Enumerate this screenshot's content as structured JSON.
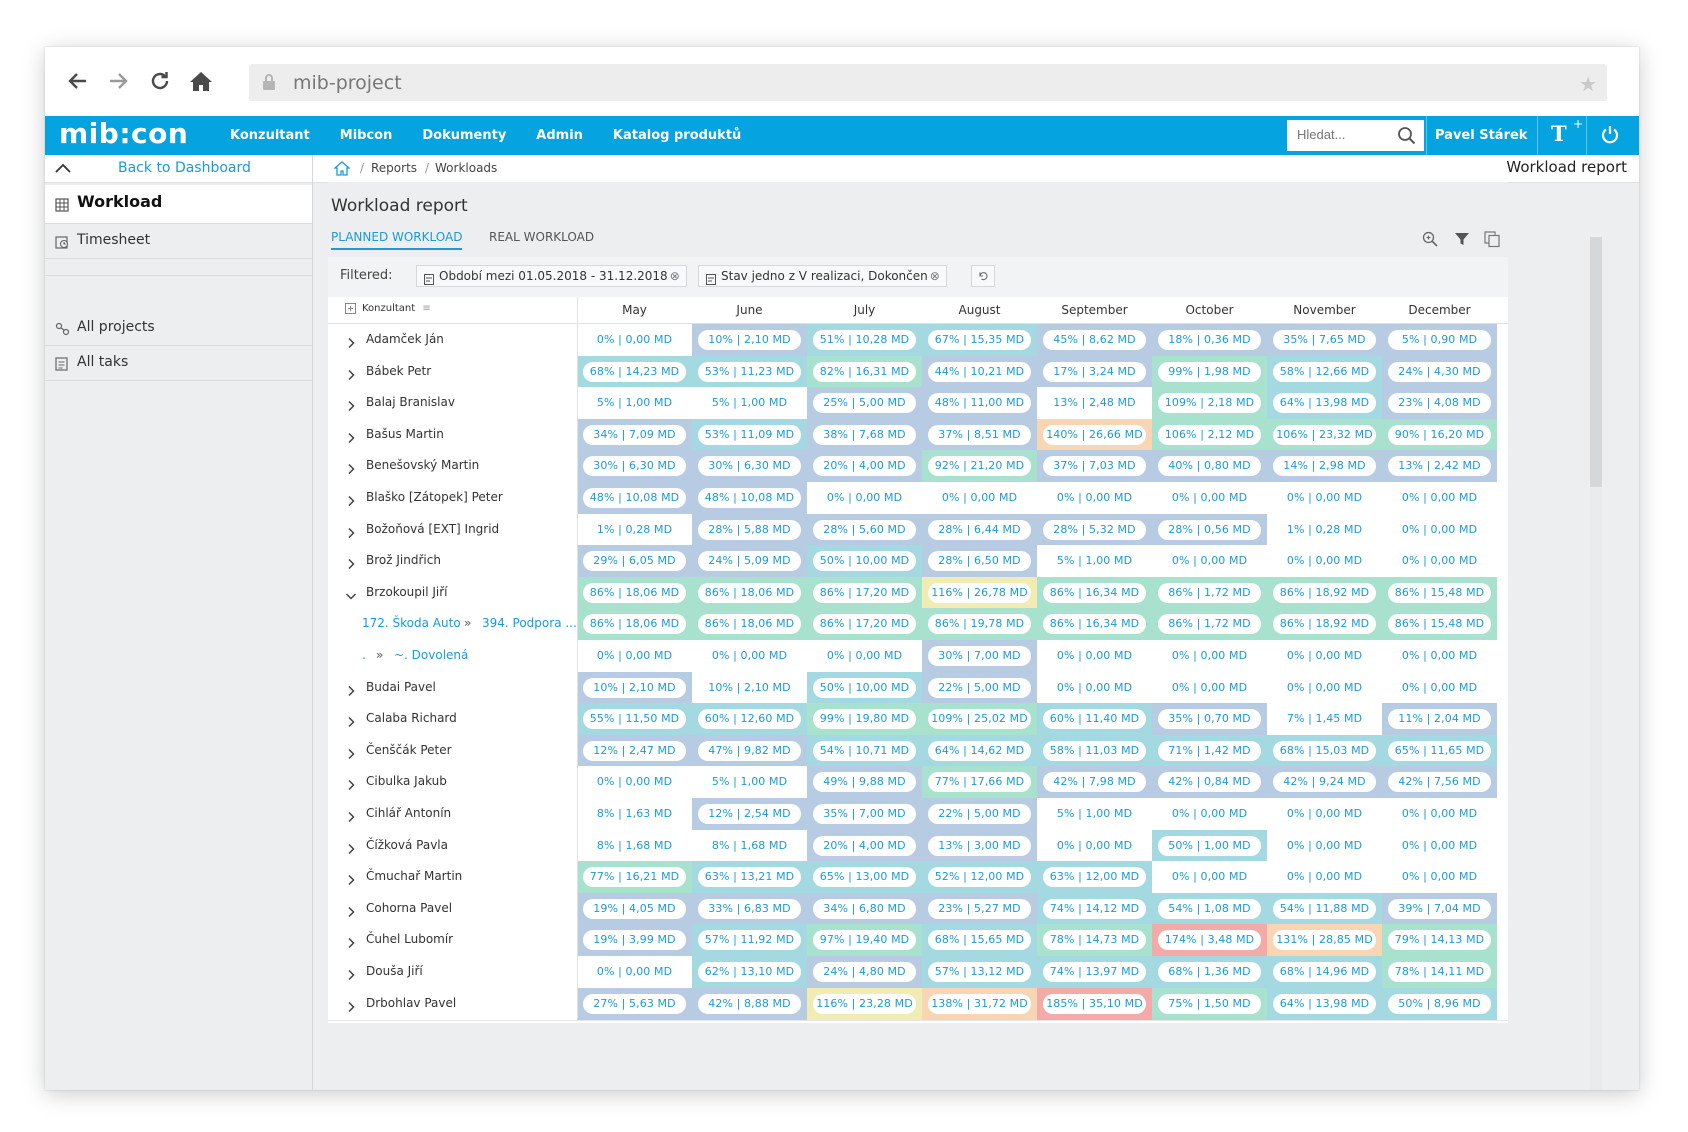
{
  "browser": {
    "url": "mib-project"
  },
  "header": {
    "logo": "mib:con",
    "menu": [
      "Konzultant",
      "Mibcon",
      "Dokumenty",
      "Admin",
      "Katalog produktů"
    ],
    "search_placeholder": "Hledat...",
    "user": "Pavel Stárek",
    "accent": "#05a3e0"
  },
  "sidebar": {
    "back_label": "Back to Dashboard",
    "items": [
      {
        "label": "Workload",
        "icon": "grid-icon"
      },
      {
        "label": "Timesheet",
        "icon": "timesheet-icon"
      },
      {
        "label": "All projects",
        "icon": "projects-icon"
      },
      {
        "label": "All taks",
        "icon": "tasks-icon"
      }
    ]
  },
  "breadcrumb": {
    "items": [
      "Reports",
      "Workloads"
    ],
    "page_title": "Workload report"
  },
  "report": {
    "title": "Workload report",
    "tabs": [
      "PLANNED WORKLOAD",
      "REAL WORKLOAD"
    ],
    "filter_label": "Filtered:",
    "filters": [
      "Období mezi 01.05.2018 - 31.12.2018",
      "Stav jedno z V realizaci, Dokončen"
    ],
    "filter_clear": "⊗"
  },
  "table": {
    "name_header": "Konzultant",
    "months": [
      "May",
      "June",
      "July",
      "August",
      "September",
      "October",
      "November",
      "December"
    ],
    "rows": [
      {
        "name": "Adamček Ján",
        "expanded": false,
        "cells": [
          "0% | 0,00 MD",
          "10% | 2,10 MD",
          "51% | 10,28 MD",
          "67% | 15,35 MD",
          "45% | 8,62 MD",
          "18% | 0,36 MD",
          "35% | 7,65 MD",
          "5% | 0,90 MD"
        ],
        "colors": [
          "#ffffff",
          "#b7cbe3",
          "#a4d9e2",
          "#a4d9e2",
          "#b7cbe3",
          "#b7cbe3",
          "#b7cbe3",
          "#b7cbe3"
        ]
      },
      {
        "name": "Bábek Petr",
        "expanded": false,
        "cells": [
          "68% | 14,23 MD",
          "53% | 11,23 MD",
          "82% | 16,31 MD",
          "44% | 10,21 MD",
          "17% | 3,24 MD",
          "99% | 1,98 MD",
          "58% | 12,66 MD",
          "24% | 4,30 MD"
        ],
        "colors": [
          "#a4d9e2",
          "#a4d9e2",
          "#a8e2cf",
          "#b7cbe3",
          "#b7cbe3",
          "#a8e2cf",
          "#a4d9e2",
          "#b7cbe3"
        ]
      },
      {
        "name": "Balaj Branislav",
        "expanded": false,
        "cells": [
          "5% | 1,00 MD",
          "5% | 1,00 MD",
          "25% | 5,00 MD",
          "48% | 11,00 MD",
          "13% | 2,48 MD",
          "109% | 2,18 MD",
          "64% | 13,98 MD",
          "23% | 4,08 MD"
        ],
        "colors": [
          "#ffffff",
          "#ffffff",
          "#b7cbe3",
          "#b7cbe3",
          "#ffffff",
          "#a8e2cf",
          "#a4d9e2",
          "#b7cbe3"
        ]
      },
      {
        "name": "Bašus Martin",
        "expanded": false,
        "cells": [
          "34% | 7,09 MD",
          "53% | 11,09 MD",
          "38% | 7,68 MD",
          "37% | 8,51 MD",
          "140% | 26,66 MD",
          "106% | 2,12 MD",
          "106% | 23,32 MD",
          "90% | 16,20 MD"
        ],
        "colors": [
          "#b7cbe3",
          "#a4d9e2",
          "#b7cbe3",
          "#b7cbe3",
          "#f8d6b4",
          "#a8e2cf",
          "#a8e2cf",
          "#a8e2cf"
        ]
      },
      {
        "name": "Benešovský Martin",
        "expanded": false,
        "cells": [
          "30% | 6,30 MD",
          "30% | 6,30 MD",
          "20% | 4,00 MD",
          "92% | 21,20 MD",
          "37% | 7,03 MD",
          "40% | 0,80 MD",
          "14% | 2,98 MD",
          "13% | 2,42 MD"
        ],
        "colors": [
          "#b7cbe3",
          "#b7cbe3",
          "#b7cbe3",
          "#a8e2cf",
          "#b7cbe3",
          "#b7cbe3",
          "#b7cbe3",
          "#b7cbe3"
        ]
      },
      {
        "name": "Blaško [Zátopek] Peter",
        "expanded": false,
        "cells": [
          "48% | 10,08 MD",
          "48% | 10,08 MD",
          "0% | 0,00 MD",
          "0% | 0,00 MD",
          "0% | 0,00 MD",
          "0% | 0,00 MD",
          "0% | 0,00 MD",
          "0% | 0,00 MD"
        ],
        "colors": [
          "#b7cbe3",
          "#b7cbe3",
          "#ffffff",
          "#ffffff",
          "#ffffff",
          "#ffffff",
          "#ffffff",
          "#ffffff"
        ]
      },
      {
        "name": "Božoňová [EXT] Ingrid",
        "expanded": false,
        "cells": [
          "1% | 0,28 MD",
          "28% | 5,88 MD",
          "28% | 5,60 MD",
          "28% | 6,44 MD",
          "28% | 5,32 MD",
          "28% | 0,56 MD",
          "1% | 0,28 MD",
          "0% | 0,00 MD"
        ],
        "colors": [
          "#ffffff",
          "#b7cbe3",
          "#b7cbe3",
          "#b7cbe3",
          "#b7cbe3",
          "#b7cbe3",
          "#ffffff",
          "#ffffff"
        ]
      },
      {
        "name": "Brož Jindřich",
        "expanded": false,
        "cells": [
          "29% | 6,05 MD",
          "24% | 5,09 MD",
          "50% | 10,00 MD",
          "28% | 6,50 MD",
          "5% | 1,00 MD",
          "0% | 0,00 MD",
          "0% | 0,00 MD",
          "0% | 0,00 MD"
        ],
        "colors": [
          "#b7cbe3",
          "#b7cbe3",
          "#a4d9e2",
          "#b7cbe3",
          "#ffffff",
          "#ffffff",
          "#ffffff",
          "#ffffff"
        ]
      },
      {
        "name": "Brzokoupil Jiří",
        "expanded": true,
        "cells": [
          "86% | 18,06 MD",
          "86% | 18,06 MD",
          "86% | 17,20 MD",
          "116% | 26,78 MD",
          "86% | 16,34 MD",
          "86% | 1,72 MD",
          "86% | 18,92 MD",
          "86% | 15,48 MD"
        ],
        "colors": [
          "#a8e2cf",
          "#a8e2cf",
          "#a8e2cf",
          "#f0ecb4",
          "#a8e2cf",
          "#a8e2cf",
          "#a8e2cf",
          "#a8e2cf"
        ]
      },
      {
        "sub": true,
        "name_a": "172. Škoda Auto",
        "name_b": "394. Podpora ...",
        "cells": [
          "86% | 18,06 MD",
          "86% | 18,06 MD",
          "86% | 17,20 MD",
          "86% | 19,78 MD",
          "86% | 16,34 MD",
          "86% | 1,72 MD",
          "86% | 18,92 MD",
          "86% | 15,48 MD"
        ],
        "colors": [
          "#a8e2cf",
          "#a8e2cf",
          "#a8e2cf",
          "#a8e2cf",
          "#a8e2cf",
          "#a8e2cf",
          "#a8e2cf",
          "#a8e2cf"
        ]
      },
      {
        "sub": true,
        "name_a": ".",
        "name_b": "~. Dovolená",
        "cells": [
          "0% | 0,00 MD",
          "0% | 0,00 MD",
          "0% | 0,00 MD",
          "30% | 7,00 MD",
          "0% | 0,00 MD",
          "0% | 0,00 MD",
          "0% | 0,00 MD",
          "0% | 0,00 MD"
        ],
        "colors": [
          "#ffffff",
          "#ffffff",
          "#ffffff",
          "#b7cbe3",
          "#ffffff",
          "#ffffff",
          "#ffffff",
          "#ffffff"
        ]
      },
      {
        "name": "Budai Pavel",
        "expanded": false,
        "cells": [
          "10% | 2,10 MD",
          "10% | 2,10 MD",
          "50% | 10,00 MD",
          "22% | 5,00 MD",
          "0% | 0,00 MD",
          "0% | 0,00 MD",
          "0% | 0,00 MD",
          "0% | 0,00 MD"
        ],
        "colors": [
          "#b7cbe3",
          "#ffffff",
          "#a4d9e2",
          "#b7cbe3",
          "#ffffff",
          "#ffffff",
          "#ffffff",
          "#ffffff"
        ]
      },
      {
        "name": "Calaba Richard",
        "expanded": false,
        "cells": [
          "55% | 11,50 MD",
          "60% | 12,60 MD",
          "99% | 19,80 MD",
          "109% | 25,02 MD",
          "60% | 11,40 MD",
          "35% | 0,70 MD",
          "7% | 1,45 MD",
          "11% | 2,04 MD"
        ],
        "colors": [
          "#a4d9e2",
          "#a4d9e2",
          "#a8e2cf",
          "#a8e2cf",
          "#a4d9e2",
          "#b7cbe3",
          "#ffffff",
          "#b7cbe3"
        ]
      },
      {
        "name": "Čenščák Peter",
        "expanded": false,
        "cells": [
          "12% | 2,47 MD",
          "47% | 9,82 MD",
          "54% | 10,71 MD",
          "64% | 14,62 MD",
          "58% | 11,03 MD",
          "71% | 1,42 MD",
          "68% | 15,03 MD",
          "65% | 11,65 MD"
        ],
        "colors": [
          "#b7cbe3",
          "#b7cbe3",
          "#a4d9e2",
          "#a4d9e2",
          "#a4d9e2",
          "#a4d9e2",
          "#a4d9e2",
          "#a4d9e2"
        ]
      },
      {
        "name": "Cibulka Jakub",
        "expanded": false,
        "cells": [
          "0% | 0,00 MD",
          "5% | 1,00 MD",
          "49% | 9,88 MD",
          "77% | 17,66 MD",
          "42% | 7,98 MD",
          "42% | 0,84 MD",
          "42% | 9,24 MD",
          "42% | 7,56 MD"
        ],
        "colors": [
          "#ffffff",
          "#ffffff",
          "#b7cbe3",
          "#a8e2cf",
          "#b7cbe3",
          "#b7cbe3",
          "#b7cbe3",
          "#b7cbe3"
        ]
      },
      {
        "name": "Cihlář Antonín",
        "expanded": false,
        "cells": [
          "8% | 1,63 MD",
          "12% | 2,54 MD",
          "35% | 7,00 MD",
          "22% | 5,00 MD",
          "5% | 1,00 MD",
          "0% | 0,00 MD",
          "0% | 0,00 MD",
          "0% | 0,00 MD"
        ],
        "colors": [
          "#ffffff",
          "#b7cbe3",
          "#b7cbe3",
          "#b7cbe3",
          "#ffffff",
          "#ffffff",
          "#ffffff",
          "#ffffff"
        ]
      },
      {
        "name": "Čížková Pavla",
        "expanded": false,
        "cells": [
          "8% | 1,68 MD",
          "8% | 1,68 MD",
          "20% | 4,00 MD",
          "13% | 3,00 MD",
          "0% | 0,00 MD",
          "50% | 1,00 MD",
          "0% | 0,00 MD",
          "0% | 0,00 MD"
        ],
        "colors": [
          "#ffffff",
          "#ffffff",
          "#b7cbe3",
          "#b7cbe3",
          "#ffffff",
          "#a4d9e2",
          "#ffffff",
          "#ffffff"
        ]
      },
      {
        "name": "Čmuchař Martin",
        "expanded": false,
        "cells": [
          "77% | 16,21 MD",
          "63% | 13,21 MD",
          "65% | 13,00 MD",
          "52% | 12,00 MD",
          "63% | 12,00 MD",
          "0% | 0,00 MD",
          "0% | 0,00 MD",
          "0% | 0,00 MD"
        ],
        "colors": [
          "#a8e2cf",
          "#a4d9e2",
          "#a4d9e2",
          "#a4d9e2",
          "#a4d9e2",
          "#ffffff",
          "#ffffff",
          "#ffffff"
        ]
      },
      {
        "name": "Cohorna Pavel",
        "expanded": false,
        "cells": [
          "19% | 4,05 MD",
          "33% | 6,83 MD",
          "34% | 6,80 MD",
          "23% | 5,27 MD",
          "74% | 14,12 MD",
          "54% | 1,08 MD",
          "54% | 11,88 MD",
          "39% | 7,04 MD"
        ],
        "colors": [
          "#b7cbe3",
          "#b7cbe3",
          "#b7cbe3",
          "#b7cbe3",
          "#a4d9e2",
          "#a4d9e2",
          "#a4d9e2",
          "#b7cbe3"
        ]
      },
      {
        "name": "Čuhel Lubomír",
        "expanded": false,
        "cells": [
          "19% | 3,99 MD",
          "57% | 11,92 MD",
          "97% | 19,40 MD",
          "68% | 15,65 MD",
          "78% | 14,73 MD",
          "174% | 3,48 MD",
          "131% | 28,85 MD",
          "79% | 14,13 MD"
        ],
        "colors": [
          "#b7cbe3",
          "#a4d9e2",
          "#a8e2cf",
          "#a4d9e2",
          "#a8e2cf",
          "#f3aaa8",
          "#f8d6b4",
          "#a8e2cf"
        ]
      },
      {
        "name": "Douša Jiří",
        "expanded": false,
        "cells": [
          "0% | 0,00 MD",
          "62% | 13,10 MD",
          "24% | 4,80 MD",
          "57% | 13,12 MD",
          "74% | 13,97 MD",
          "68% | 1,36 MD",
          "68% | 14,96 MD",
          "78% | 14,11 MD"
        ],
        "colors": [
          "#ffffff",
          "#a4d9e2",
          "#b7cbe3",
          "#a4d9e2",
          "#a4d9e2",
          "#a4d9e2",
          "#a4d9e2",
          "#a8e2cf"
        ]
      },
      {
        "name": "Drbohlav Pavel",
        "expanded": false,
        "cells": [
          "27% | 5,63 MD",
          "42% | 8,88 MD",
          "116% | 23,28 MD",
          "138% | 31,72 MD",
          "185% | 35,10 MD",
          "75% | 1,50 MD",
          "64% | 13,98 MD",
          "50% | 8,96 MD"
        ],
        "colors": [
          "#b7cbe3",
          "#b7cbe3",
          "#f0ecb4",
          "#f8d6b4",
          "#f3aaa8",
          "#a8e2cf",
          "#a4d9e2",
          "#a4d9e2"
        ]
      }
    ]
  }
}
